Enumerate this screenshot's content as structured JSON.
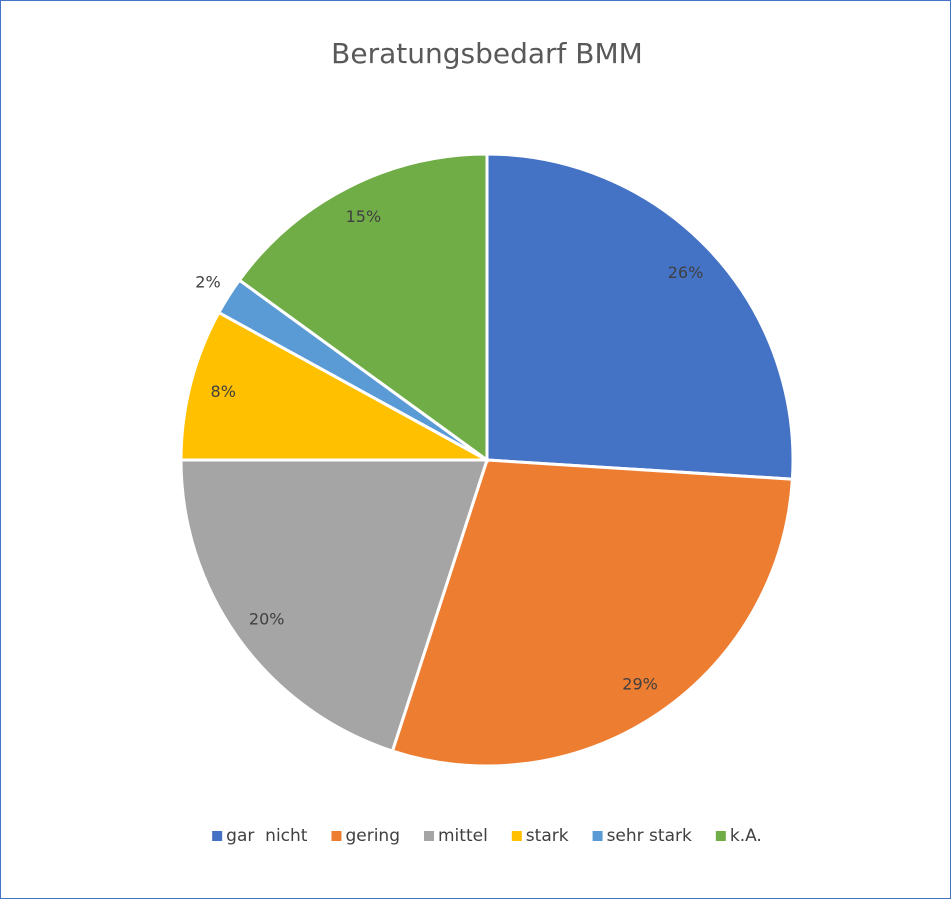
{
  "chart_data": {
    "type": "pie",
    "title": "Beratungsbedarf BMM",
    "categories": [
      "gar  nicht",
      "gering",
      "mittel",
      "stark",
      "sehr stark",
      "k.A."
    ],
    "values": [
      26,
      29,
      20,
      8,
      2,
      15
    ],
    "value_labels": [
      "26%",
      "29%",
      "20%",
      "8%",
      "2%",
      "15%"
    ],
    "colors": [
      "#4472c4",
      "#ed7d31",
      "#a5a5a5",
      "#ffc000",
      "#5b9bd5",
      "#70ad47"
    ],
    "legend": "bottom"
  }
}
